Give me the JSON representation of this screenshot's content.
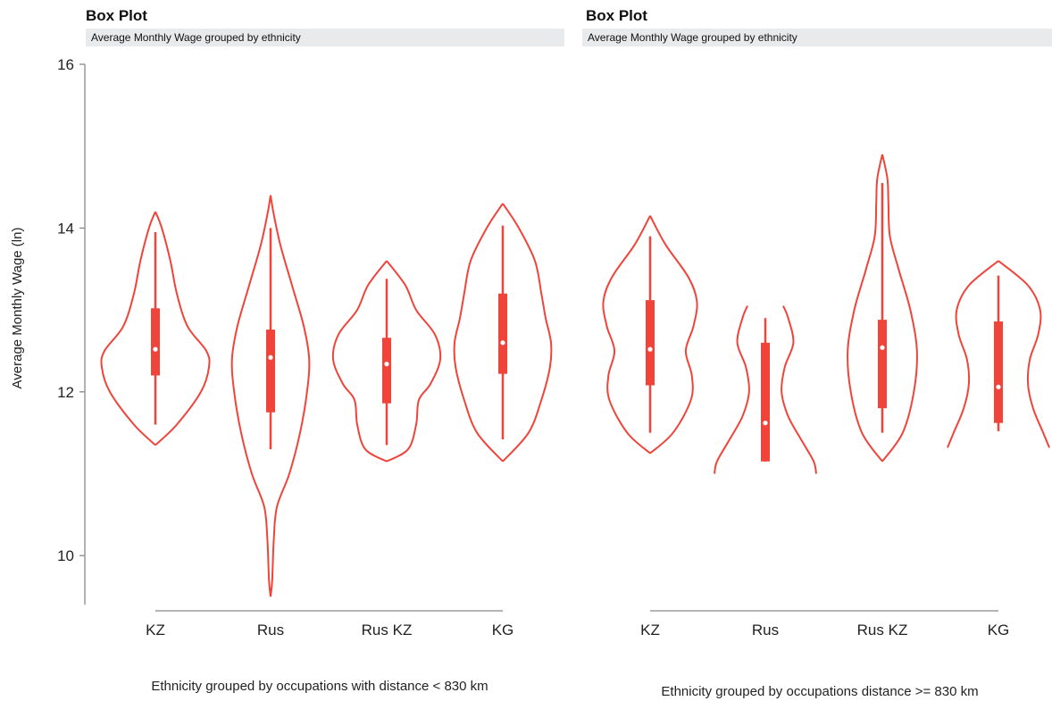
{
  "chart_data": [
    {
      "type": "violin",
      "title": "Box Plot",
      "subtitle": "Average Monthly Wage grouped by ethnicity",
      "xlabel": "Ethnicity grouped by occupations with distance < 830 km",
      "ylabel": "Average Monthly Wage (ln)",
      "ylim": [
        9.4,
        16
      ],
      "yticks": [
        10,
        12,
        14,
        16
      ],
      "color": "#f0443a",
      "groups": [
        {
          "category": "KZ",
          "whisker_low": 11.6,
          "q1": 12.2,
          "median": 12.52,
          "q3": 13.02,
          "whisker_high": 13.95,
          "density": [
            [
              11.35,
              0
            ],
            [
              11.6,
              0.4
            ],
            [
              12.0,
              0.85
            ],
            [
              12.3,
              1.0
            ],
            [
              12.5,
              0.95
            ],
            [
              12.8,
              0.6
            ],
            [
              13.2,
              0.4
            ],
            [
              13.6,
              0.28
            ],
            [
              14.0,
              0.12
            ],
            [
              14.2,
              0
            ]
          ]
        },
        {
          "category": "Rus",
          "whisker_low": 11.3,
          "q1": 11.75,
          "median": 12.42,
          "q3": 12.76,
          "whisker_high": 14.0,
          "density": [
            [
              9.5,
              0
            ],
            [
              9.7,
              0.03
            ],
            [
              10.2,
              0.06
            ],
            [
              10.6,
              0.12
            ],
            [
              11.0,
              0.35
            ],
            [
              11.5,
              0.55
            ],
            [
              12.0,
              0.68
            ],
            [
              12.4,
              0.72
            ],
            [
              12.8,
              0.62
            ],
            [
              13.3,
              0.4
            ],
            [
              13.8,
              0.18
            ],
            [
              14.2,
              0.05
            ],
            [
              14.4,
              0
            ]
          ]
        },
        {
          "category": "Rus KZ",
          "whisker_low": 11.35,
          "q1": 11.86,
          "median": 12.34,
          "q3": 12.66,
          "whisker_high": 13.38,
          "density": [
            [
              11.15,
              0
            ],
            [
              11.3,
              0.4
            ],
            [
              11.6,
              0.55
            ],
            [
              11.9,
              0.6
            ],
            [
              12.1,
              0.82
            ],
            [
              12.4,
              1.0
            ],
            [
              12.7,
              0.9
            ],
            [
              13.0,
              0.55
            ],
            [
              13.3,
              0.35
            ],
            [
              13.6,
              0
            ]
          ]
        },
        {
          "category": "KG",
          "whisker_low": 11.42,
          "q1": 12.22,
          "median": 12.6,
          "q3": 13.2,
          "whisker_high": 14.03,
          "density": [
            [
              11.15,
              0
            ],
            [
              11.5,
              0.48
            ],
            [
              11.9,
              0.72
            ],
            [
              12.3,
              0.88
            ],
            [
              12.6,
              0.9
            ],
            [
              12.9,
              0.8
            ],
            [
              13.2,
              0.72
            ],
            [
              13.6,
              0.6
            ],
            [
              14.0,
              0.3
            ],
            [
              14.3,
              0
            ]
          ]
        }
      ]
    },
    {
      "type": "violin",
      "title": "Box Plot",
      "subtitle": "Average Monthly Wage grouped by ethnicity",
      "xlabel": "Ethnicity grouped by occupations distance >= 830 km",
      "ylabel": "",
      "ylim": [
        9.4,
        16
      ],
      "color": "#f0443a",
      "groups": [
        {
          "category": "KZ",
          "whisker_low": 11.5,
          "q1": 12.08,
          "median": 12.52,
          "q3": 13.12,
          "whisker_high": 13.9,
          "density": [
            [
              11.25,
              0
            ],
            [
              11.5,
              0.45
            ],
            [
              11.9,
              0.8
            ],
            [
              12.2,
              0.82
            ],
            [
              12.5,
              0.7
            ],
            [
              12.8,
              0.85
            ],
            [
              13.1,
              0.92
            ],
            [
              13.4,
              0.75
            ],
            [
              13.8,
              0.3
            ],
            [
              14.15,
              0
            ]
          ]
        },
        {
          "category": "Rus",
          "whisker_low": 11.15,
          "q1": 11.15,
          "median": 11.62,
          "q3": 12.6,
          "whisker_high": 12.9,
          "density": [
            [
              11.0,
              1.0
            ],
            [
              11.15,
              0.95
            ],
            [
              11.4,
              0.72
            ],
            [
              11.7,
              0.45
            ],
            [
              12.0,
              0.32
            ],
            [
              12.3,
              0.38
            ],
            [
              12.6,
              0.55
            ],
            [
              12.9,
              0.45
            ],
            [
              13.05,
              0.35
            ]
          ]
        },
        {
          "category": "Rus KZ",
          "whisker_low": 11.5,
          "q1": 11.8,
          "median": 12.54,
          "q3": 12.88,
          "whisker_high": 14.55,
          "density": [
            [
              11.15,
              0
            ],
            [
              11.5,
              0.4
            ],
            [
              12.0,
              0.62
            ],
            [
              12.5,
              0.68
            ],
            [
              13.0,
              0.55
            ],
            [
              13.5,
              0.32
            ],
            [
              13.9,
              0.15
            ],
            [
              14.3,
              0.12
            ],
            [
              14.6,
              0.1
            ],
            [
              14.9,
              0
            ]
          ]
        },
        {
          "category": "KG",
          "whisker_low": 11.52,
          "q1": 11.62,
          "median": 12.06,
          "q3": 12.86,
          "whisker_high": 13.42,
          "density": [
            [
              11.32,
              1.0
            ],
            [
              11.5,
              0.88
            ],
            [
              11.8,
              0.68
            ],
            [
              12.1,
              0.58
            ],
            [
              12.4,
              0.62
            ],
            [
              12.7,
              0.78
            ],
            [
              13.0,
              0.82
            ],
            [
              13.3,
              0.58
            ],
            [
              13.6,
              0
            ]
          ]
        }
      ]
    }
  ]
}
